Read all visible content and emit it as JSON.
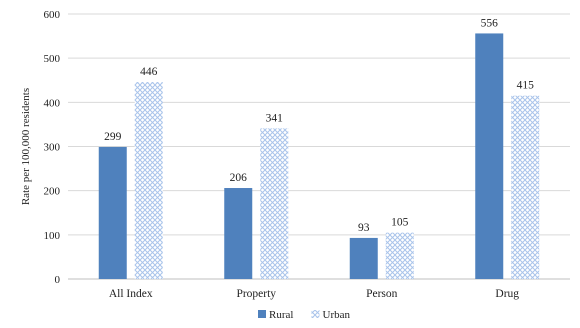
{
  "chart_data": {
    "type": "bar",
    "title": "",
    "xlabel": "",
    "ylabel": "Rate per 100,000 residents",
    "ylim": [
      0,
      600
    ],
    "yticks": [
      0,
      100,
      200,
      300,
      400,
      500,
      600
    ],
    "grid": true,
    "legend_position": "bottom",
    "categories": [
      "All Index",
      "Property",
      "Person",
      "Drug"
    ],
    "series": [
      {
        "name": "Rural",
        "values": [
          299,
          206,
          93,
          556
        ],
        "color": "#4f81bd",
        "pattern": "solid"
      },
      {
        "name": "Urban",
        "values": [
          446,
          341,
          105,
          415
        ],
        "color": "#a9c4eb",
        "pattern": "crosshatch"
      }
    ]
  }
}
